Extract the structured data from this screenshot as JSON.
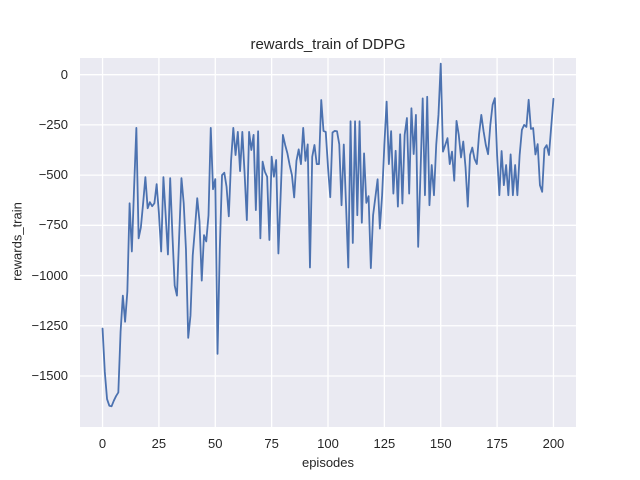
{
  "figure": {
    "title": "rewards_train of DDPG",
    "xlabel": "episodes",
    "ylabel": "rewards_train"
  },
  "colors": {
    "figure_bg": "#ffffff",
    "axes_bg": "#eaeaf2",
    "grid": "#ffffff",
    "line": "#4c72b0",
    "text": "#262626"
  },
  "chart_data": {
    "type": "line",
    "title": "rewards_train of DDPG",
    "xlabel": "episodes",
    "ylabel": "rewards_train",
    "grid": true,
    "legend": false,
    "xlim": [
      -10,
      210
    ],
    "ylim": [
      -1754,
      83
    ],
    "xticks": {
      "values": [
        0,
        25,
        50,
        75,
        100,
        125,
        150,
        175,
        200
      ],
      "labels": [
        "0",
        "25",
        "50",
        "75",
        "100",
        "125",
        "150",
        "175",
        "200"
      ]
    },
    "yticks": {
      "values": [
        0,
        -250,
        -500,
        -750,
        -1000,
        -1250,
        -1500
      ],
      "labels": [
        "0",
        "−250",
        "−500",
        "−750",
        "−1000",
        "−1250",
        "−1500"
      ]
    },
    "x_start": 0,
    "x_step": 1,
    "series": [
      {
        "name": "rewards_train",
        "color": "#4c72b0",
        "values": [
          -1264,
          -1480,
          -1615,
          -1648,
          -1651,
          -1623,
          -1600,
          -1582,
          -1280,
          -1100,
          -1230,
          -1080,
          -640,
          -880,
          -560,
          -265,
          -815,
          -760,
          -640,
          -510,
          -665,
          -635,
          -655,
          -640,
          -545,
          -690,
          -880,
          -510,
          -700,
          -895,
          -515,
          -800,
          -1050,
          -1100,
          -800,
          -515,
          -640,
          -870,
          -1310,
          -1200,
          -900,
          -765,
          -615,
          -730,
          -1025,
          -799,
          -830,
          -700,
          -265,
          -570,
          -520,
          -1390,
          -870,
          -500,
          -488,
          -558,
          -705,
          -430,
          -265,
          -400,
          -285,
          -480,
          -285,
          -490,
          -724,
          -285,
          -375,
          -300,
          -674,
          -282,
          -815,
          -433,
          -483,
          -508,
          -823,
          -408,
          -508,
          -425,
          -890,
          -600,
          -300,
          -350,
          -392,
          -450,
          -500,
          -611,
          -429,
          -372,
          -445,
          -265,
          -429,
          -347,
          -960,
          -409,
          -350,
          -445,
          -445,
          -126,
          -280,
          -285,
          -460,
          -610,
          -288,
          -280,
          -282,
          -347,
          -650,
          -348,
          -650,
          -960,
          -232,
          -838,
          -232,
          -700,
          -232,
          -737,
          -392,
          -638,
          -605,
          -963,
          -700,
          -611,
          -521,
          -766,
          -600,
          -350,
          -134,
          -445,
          -281,
          -592,
          -379,
          -657,
          -297,
          -641,
          -300,
          -216,
          -592,
          -167,
          -395,
          -200,
          -857,
          -500,
          -118,
          -600,
          -110,
          -650,
          -450,
          -600,
          -350,
          -200,
          55,
          -383,
          -350,
          -316,
          -445,
          -383,
          -528,
          -230,
          -300,
          -412,
          -333,
          -461,
          -657,
          -400,
          -363,
          -420,
          -445,
          -297,
          -200,
          -281,
          -350,
          -396,
          -250,
          -150,
          -117,
          -400,
          -600,
          -380,
          -550,
          -450,
          -600,
          -397,
          -600,
          -450,
          -600,
          -400,
          -275,
          -250,
          -260,
          -125,
          -270,
          -266,
          -397,
          -346,
          -550,
          -583,
          -368,
          -351,
          -400,
          -260,
          -120
        ]
      }
    ]
  }
}
